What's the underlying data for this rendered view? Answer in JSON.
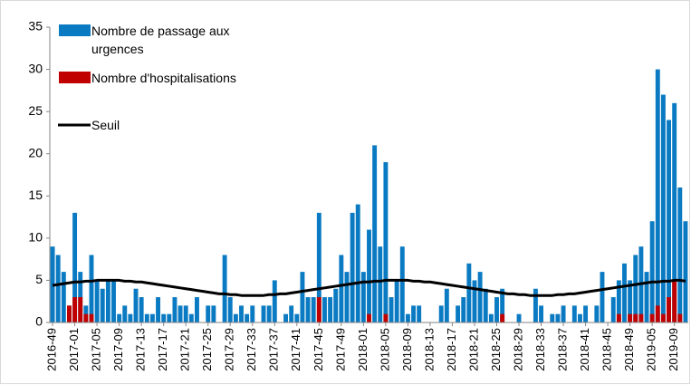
{
  "chart_data": {
    "type": "bar",
    "categories": [
      "2016-49",
      null,
      null,
      null,
      "2017-01",
      null,
      null,
      null,
      "2017-05",
      null,
      null,
      null,
      "2017-09",
      null,
      null,
      null,
      "2017-13",
      null,
      null,
      null,
      "2017-17",
      null,
      null,
      null,
      "2017-21",
      null,
      null,
      null,
      "2017-25",
      null,
      null,
      null,
      "2017-29",
      null,
      null,
      null,
      "2017-33",
      null,
      null,
      null,
      "2017-37",
      null,
      null,
      null,
      "2017-41",
      null,
      null,
      null,
      "2017-45",
      null,
      null,
      null,
      "2017-49",
      null,
      null,
      null,
      "2018-01",
      null,
      null,
      null,
      "2018-05",
      null,
      null,
      null,
      "2018-09",
      null,
      null,
      null,
      "2018-13",
      null,
      null,
      null,
      "2018-17",
      null,
      null,
      null,
      "2018-21",
      null,
      null,
      null,
      "2018-25",
      null,
      null,
      null,
      "2018-29",
      null,
      null,
      null,
      "2018-33",
      null,
      null,
      null,
      "2018-37",
      null,
      null,
      null,
      "2018-41",
      null,
      null,
      null,
      "2018-45",
      null,
      null,
      null,
      "2018-49",
      null,
      null,
      null,
      "2019-05",
      null,
      null,
      null,
      "2019-09",
      null,
      null
    ],
    "series": [
      {
        "name": "Nombre de passage aux urgences",
        "color": "#0a7ac2",
        "values": [
          9,
          8,
          6,
          2,
          13,
          6,
          2,
          8,
          5,
          4,
          5,
          5,
          1,
          2,
          1,
          4,
          3,
          1,
          1,
          3,
          1,
          1,
          3,
          2,
          2,
          1,
          3,
          0,
          2,
          2,
          0,
          8,
          3,
          1,
          2,
          1,
          2,
          0,
          2,
          2,
          5,
          0,
          1,
          2,
          1,
          6,
          3,
          3,
          13,
          3,
          3,
          4,
          8,
          6,
          13,
          14,
          6,
          11,
          21,
          9,
          19,
          3,
          5,
          9,
          1,
          2,
          2,
          0,
          0,
          0,
          2,
          4,
          0,
          2,
          3,
          7,
          5,
          6,
          4,
          1,
          3,
          4,
          0,
          0,
          1,
          0,
          0,
          4,
          2,
          0,
          1,
          1,
          2,
          0,
          2,
          1,
          2,
          0,
          2,
          6,
          0,
          3,
          5,
          7,
          5,
          8,
          9,
          6,
          12,
          30,
          27,
          24,
          26,
          16,
          12
        ]
      },
      {
        "name": "Nombre d'hospitalisations",
        "color": "#c00000",
        "values": [
          0,
          0,
          0,
          2,
          3,
          3,
          1,
          1,
          0,
          0,
          0,
          0,
          0,
          0,
          0,
          0,
          0,
          0,
          0,
          0,
          0,
          0,
          0,
          0,
          0,
          0,
          0,
          0,
          0,
          0,
          0,
          0,
          0,
          0,
          0,
          0,
          0,
          0,
          0,
          0,
          0,
          0,
          0,
          0,
          0,
          0,
          0,
          0,
          3,
          0,
          0,
          0,
          0,
          0,
          0,
          0,
          0,
          1,
          0,
          0,
          1,
          0,
          0,
          0,
          0,
          0,
          0,
          0,
          0,
          0,
          0,
          0,
          0,
          0,
          0,
          0,
          0,
          0,
          0,
          0,
          0,
          1,
          0,
          0,
          0,
          0,
          0,
          0,
          0,
          0,
          0,
          0,
          0,
          0,
          0,
          0,
          0,
          0,
          0,
          0,
          0,
          0,
          1,
          0,
          1,
          1,
          1,
          0,
          1,
          2,
          1,
          3,
          5,
          1,
          0
        ]
      },
      {
        "name": "Seuil",
        "type": "line",
        "color": "#000000",
        "values": [
          4.4,
          4.5,
          4.6,
          4.7,
          4.8,
          4.8,
          4.9,
          4.9,
          5.0,
          5.0,
          5.0,
          5.0,
          5.0,
          4.9,
          4.9,
          4.8,
          4.8,
          4.7,
          4.6,
          4.5,
          4.4,
          4.3,
          4.2,
          4.1,
          4.0,
          3.9,
          3.8,
          3.7,
          3.6,
          3.5,
          3.4,
          3.4,
          3.3,
          3.3,
          3.2,
          3.2,
          3.2,
          3.2,
          3.2,
          3.3,
          3.3,
          3.4,
          3.4,
          3.5,
          3.6,
          3.7,
          3.8,
          3.9,
          4.0,
          4.1,
          4.2,
          4.3,
          4.4,
          4.5,
          4.6,
          4.7,
          4.8,
          4.8,
          4.9,
          4.9,
          5.0,
          5.0,
          5.0,
          5.0,
          5.0,
          4.9,
          4.9,
          4.8,
          4.8,
          4.7,
          4.6,
          4.5,
          4.4,
          4.3,
          4.2,
          4.1,
          4.0,
          3.9,
          3.8,
          3.7,
          3.6,
          3.5,
          3.4,
          3.4,
          3.3,
          3.3,
          3.2,
          3.2,
          3.2,
          3.2,
          3.2,
          3.3,
          3.3,
          3.4,
          3.4,
          3.5,
          3.6,
          3.7,
          3.8,
          3.9,
          4.0,
          4.1,
          4.2,
          4.3,
          4.4,
          4.5,
          4.6,
          4.7,
          4.8,
          4.8,
          4.9,
          4.9,
          5.0,
          5.0,
          4.9
        ]
      }
    ],
    "ylim": [
      0,
      35
    ],
    "yticks": [
      0,
      5,
      10,
      15,
      20,
      25,
      30,
      35
    ],
    "grid": false,
    "legend": "top-left"
  }
}
